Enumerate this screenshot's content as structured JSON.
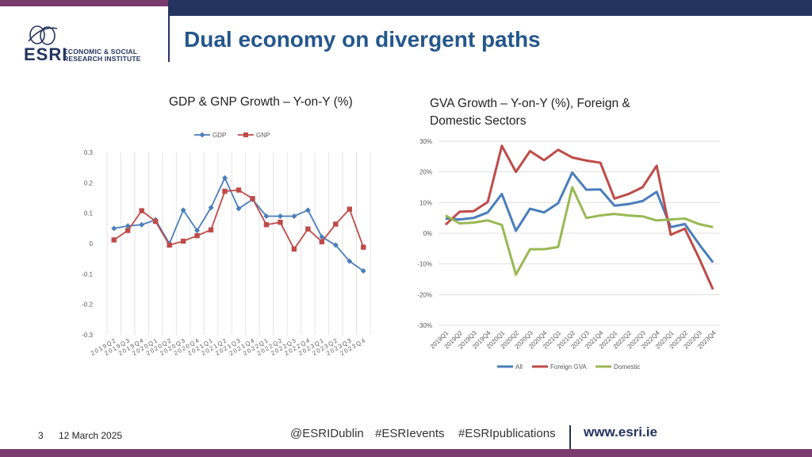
{
  "header": {
    "title": "Dual economy on divergent paths",
    "logo_abbr": "ESRI",
    "logo_line1": "ECONOMIC & SOCIAL",
    "logo_line2": "RESEARCH INSTITUTE"
  },
  "footer": {
    "slide_number": "3",
    "date": "12 March 2025",
    "handle1": "@ESRIDublin",
    "handle2": "#ESRIevents",
    "handle3": "#ESRIpublications",
    "website": "www.esri.ie"
  },
  "colors": {
    "brand_navy": "#24345e",
    "brand_purple": "#7a3b6e",
    "title_blue": "#24578c"
  },
  "chart_data": [
    {
      "type": "line",
      "title": "GDP & GNP Growth – Y-on-Y (%)",
      "categories": [
        "2019Q2",
        "2019Q3",
        "2019Q4",
        "2020Q1",
        "2020Q2",
        "2020Q3",
        "2020Q4",
        "2021Q1",
        "2021Q2",
        "2021Q3",
        "2021Q4",
        "2022Q1",
        "2022Q2",
        "2022Q3",
        "2022Q4",
        "2023Q1",
        "2023Q2",
        "2023Q3",
        "2023Q4"
      ],
      "ylim": [
        -0.3,
        0.3
      ],
      "yticks": [
        "0.3",
        "0.2",
        "0.1",
        "0",
        "-0.1",
        "-0.2",
        "-0.3"
      ],
      "legend_position": "top",
      "grid": "vertical",
      "series": [
        {
          "name": "GDP",
          "color": "#4a7ebb",
          "marker": "diamond",
          "values": [
            0.05,
            0.058,
            0.062,
            0.078,
            0.0,
            0.11,
            0.043,
            0.118,
            0.216,
            0.115,
            0.145,
            0.09,
            0.09,
            0.09,
            0.11,
            0.022,
            -0.005,
            -0.058,
            -0.09
          ]
        },
        {
          "name": "GNP",
          "color": "#be4b48",
          "marker": "square",
          "values": [
            0.012,
            0.043,
            0.108,
            0.073,
            -0.005,
            0.008,
            0.026,
            0.045,
            0.172,
            0.176,
            0.148,
            0.062,
            0.07,
            -0.018,
            0.048,
            0.006,
            0.064,
            0.113,
            -0.012
          ]
        }
      ]
    },
    {
      "type": "line",
      "title": "GVA Growth – Y-on-Y (%), Foreign & Domestic Sectors",
      "categories": [
        "2019Q1",
        "2019Q2",
        "2019Q3",
        "2019Q4",
        "2020Q1",
        "2020Q2",
        "2020Q3",
        "2020Q4",
        "2021Q1",
        "2021Q2",
        "2021Q3",
        "2021Q4",
        "2022Q1",
        "2022Q2",
        "2022Q3",
        "2022Q4",
        "2023Q1",
        "2023Q2",
        "2023Q3",
        "2023Q4"
      ],
      "ylim": [
        -30,
        30
      ],
      "yticks": [
        "30%",
        "20%",
        "10%",
        "0%",
        "-10%",
        "-20%",
        "-30%"
      ],
      "legend_position": "bottom",
      "grid": "horizontal",
      "series": [
        {
          "name": "All",
          "color": "#4a7ebb",
          "values": [
            4.8,
            4.5,
            5.0,
            6.8,
            12.8,
            0.8,
            8.0,
            6.8,
            9.8,
            19.8,
            14.2,
            14.3,
            9.0,
            9.5,
            10.5,
            13.5,
            2.0,
            3.0,
            -3.5,
            -9.5
          ]
        },
        {
          "name": "Foreign GVA",
          "color": "#be4b48",
          "values": [
            2.8,
            7.0,
            7.2,
            10.2,
            28.5,
            20.0,
            26.8,
            23.8,
            27.2,
            24.7,
            23.7,
            23.0,
            11.3,
            12.8,
            15.0,
            22.0,
            -0.5,
            1.5,
            -8.0,
            -18.3
          ]
        },
        {
          "name": "Domestic",
          "color": "#98b954",
          "values": [
            5.8,
            3.2,
            3.5,
            4.2,
            2.7,
            -13.5,
            -5.2,
            -5.2,
            -4.5,
            15.0,
            5.0,
            5.8,
            6.3,
            5.8,
            5.5,
            4.2,
            4.5,
            4.8,
            3.0,
            2.0
          ]
        }
      ]
    }
  ]
}
